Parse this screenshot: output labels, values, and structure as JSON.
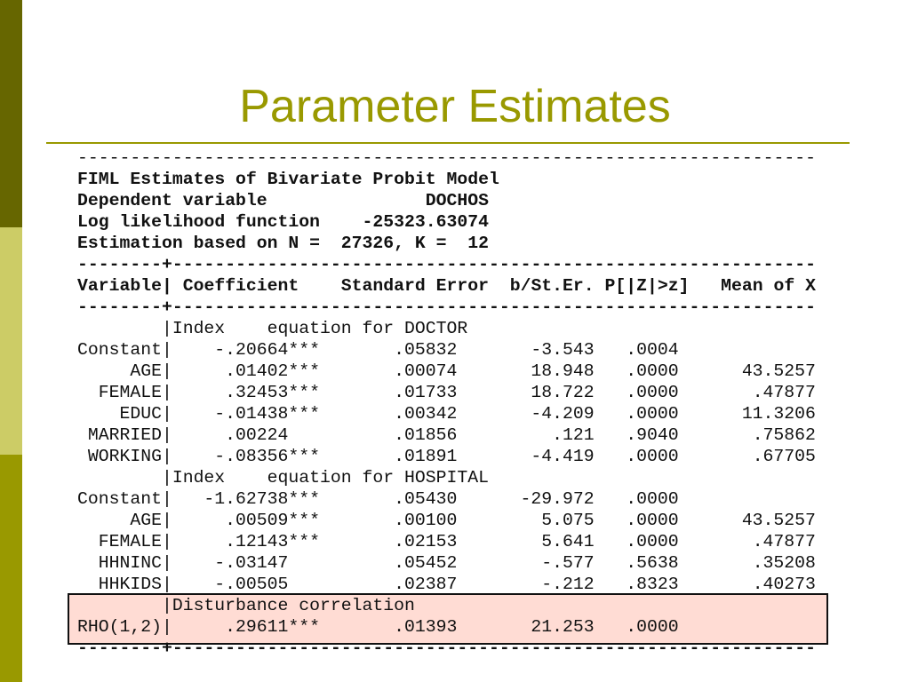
{
  "slide": {
    "title": "Parameter Estimates"
  },
  "colors": {
    "title": "#999900",
    "highlight": "#ffdcd4",
    "bar_top": "#666600",
    "bar_mid": "#cccc66",
    "bar_bottom": "#999900"
  },
  "output": {
    "dash_line": "----------------------------------------------------------------------",
    "sep_line": "--------+-------------------------------------------------------------",
    "header": [
      "FIML Estimates of Bivariate Probit Model",
      "Dependent variable               DOCHOS",
      "Log likelihood function    -25323.63074",
      "Estimation based on N =  27326, K =  12"
    ],
    "column_header": "Variable| Coefficient    Standard Error  b/St.Er. P[|Z|>z]   Mean of X",
    "sections": [
      {
        "label": "|Index    equation for DOCTOR",
        "rows": [
          {
            "var": "Constant",
            "coef": "-.20664",
            "stars": "***",
            "se": ".05832",
            "z": "-3.543",
            "p": ".0004",
            "mean": ""
          },
          {
            "var": "AGE",
            "coef": ".01402",
            "stars": "***",
            "se": ".00074",
            "z": "18.948",
            "p": ".0000",
            "mean": "43.5257"
          },
          {
            "var": "FEMALE",
            "coef": ".32453",
            "stars": "***",
            "se": ".01733",
            "z": "18.722",
            "p": ".0000",
            "mean": ".47877"
          },
          {
            "var": "EDUC",
            "coef": "-.01438",
            "stars": "***",
            "se": ".00342",
            "z": "-4.209",
            "p": ".0000",
            "mean": "11.3206"
          },
          {
            "var": "MARRIED",
            "coef": ".00224",
            "stars": "",
            "se": ".01856",
            "z": ".121",
            "p": ".9040",
            "mean": ".75862"
          },
          {
            "var": "WORKING",
            "coef": "-.08356",
            "stars": "***",
            "se": ".01891",
            "z": "-4.419",
            "p": ".0000",
            "mean": ".67705"
          }
        ]
      },
      {
        "label": "|Index    equation for HOSPITAL",
        "rows": [
          {
            "var": "Constant",
            "coef": "-1.62738",
            "stars": "***",
            "se": ".05430",
            "z": "-29.972",
            "p": ".0000",
            "mean": ""
          },
          {
            "var": "AGE",
            "coef": ".00509",
            "stars": "***",
            "se": ".00100",
            "z": "5.075",
            "p": ".0000",
            "mean": "43.5257"
          },
          {
            "var": "FEMALE",
            "coef": ".12143",
            "stars": "***",
            "se": ".02153",
            "z": "5.641",
            "p": ".0000",
            "mean": ".47877"
          },
          {
            "var": "HHNINC",
            "coef": "-.03147",
            "stars": "",
            "se": ".05452",
            "z": "-.577",
            "p": ".5638",
            "mean": ".35208"
          },
          {
            "var": "HHKIDS",
            "coef": "-.00505",
            "stars": "",
            "se": ".02387",
            "z": "-.212",
            "p": ".8323",
            "mean": ".40273"
          }
        ]
      },
      {
        "label": "|Disturbance correlation",
        "highlight": true,
        "rows": [
          {
            "var": "RHO(1,2)",
            "coef": ".29611",
            "stars": "***",
            "se": ".01393",
            "z": "21.253",
            "p": ".0000",
            "mean": ""
          }
        ]
      }
    ]
  }
}
